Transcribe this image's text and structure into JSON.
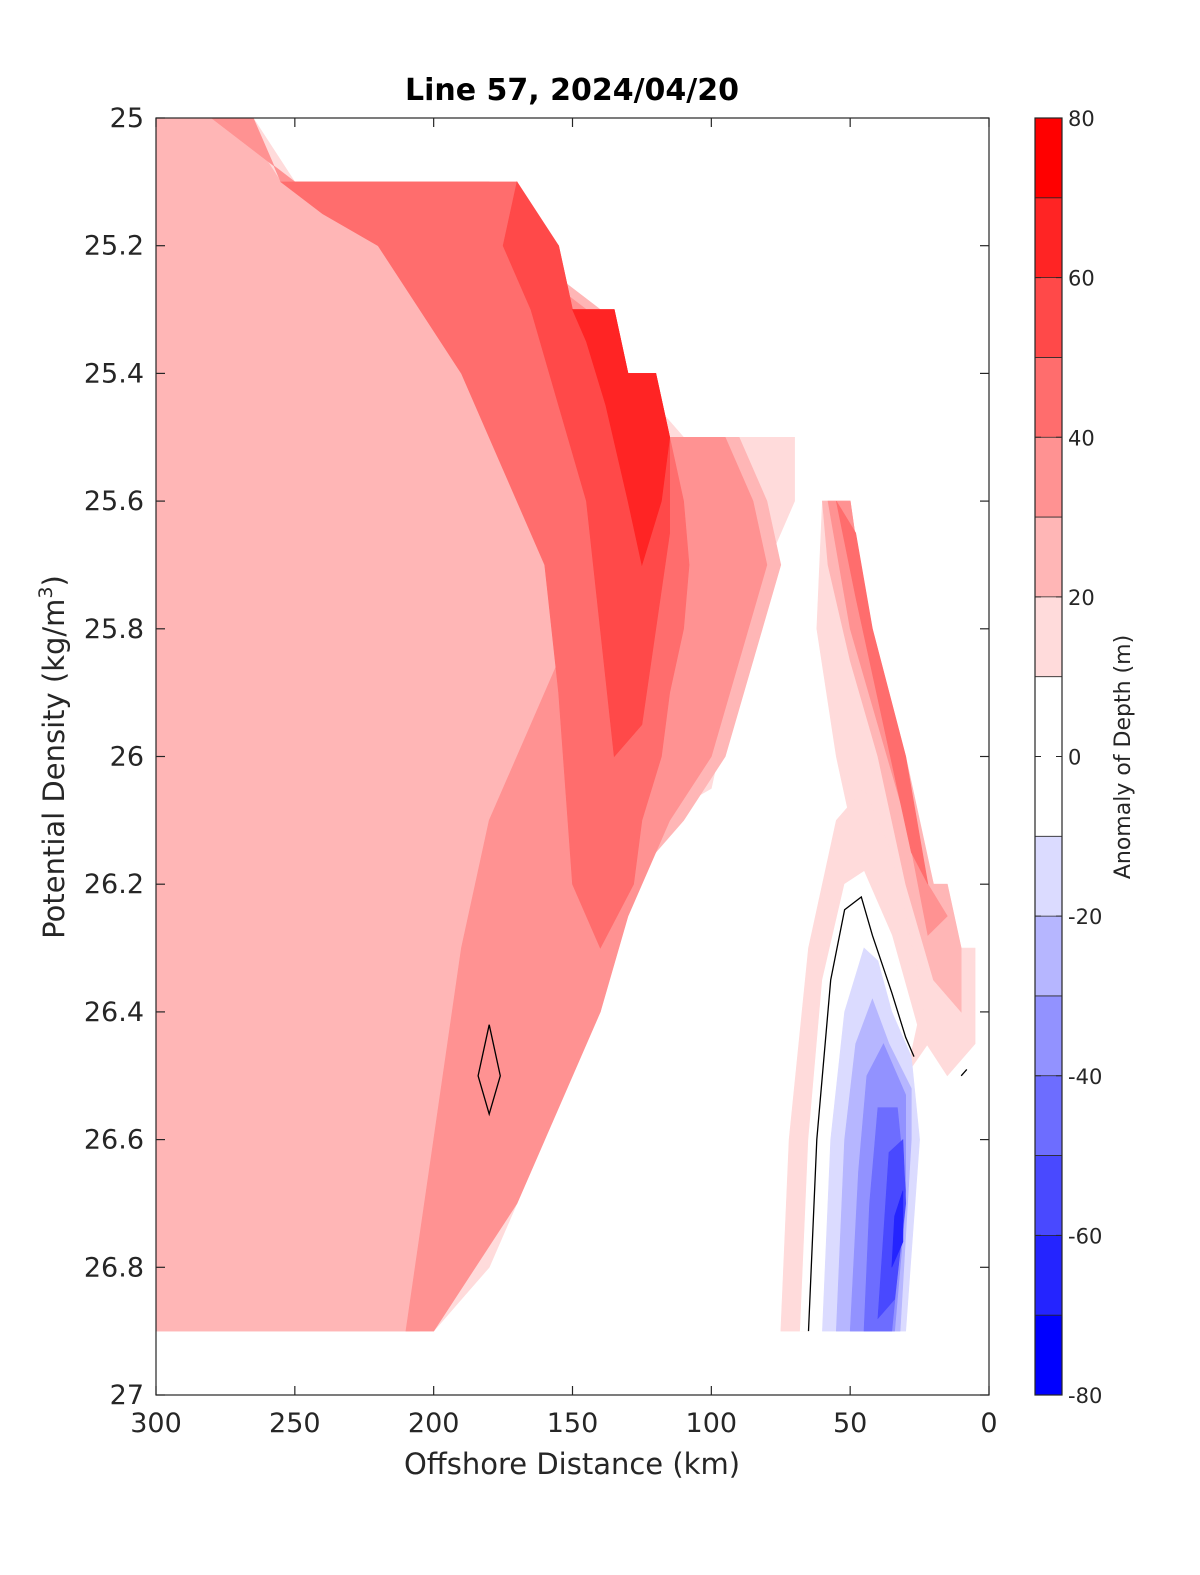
{
  "chart_data": {
    "type": "contourf",
    "title": "Line 57, 2024/04/20",
    "xlabel": "Offshore Distance (km)",
    "ylabel_main": "Potential Density (kg/m",
    "ylabel_sup": "3",
    "ylabel_close": ")",
    "colorbar_label": "Anomaly of Depth (m)",
    "xlim": [
      300,
      0
    ],
    "ylim": [
      25,
      27
    ],
    "x_reversed": true,
    "y_reversed": true,
    "x_ticks": [
      300,
      250,
      200,
      150,
      100,
      50,
      0
    ],
    "x_tick_labels": [
      "300",
      "250",
      "200",
      "150",
      "100",
      "50",
      "0"
    ],
    "y_ticks": [
      25,
      25.2,
      25.4,
      25.6,
      25.8,
      26,
      26.2,
      26.4,
      26.6,
      26.8,
      27
    ],
    "y_tick_labels": [
      "25",
      "25.2",
      "25.4",
      "25.6",
      "25.8",
      "26",
      "26.2",
      "26.4",
      "26.6",
      "26.8",
      "27"
    ],
    "colorbar": {
      "range": [
        -80,
        80
      ],
      "levels": [
        -80,
        -70,
        -60,
        -50,
        -40,
        -30,
        -20,
        -10,
        10,
        20,
        30,
        40,
        50,
        60,
        70,
        80
      ],
      "colors": [
        "#0000ff",
        "#2424ff",
        "#4949ff",
        "#6d6dff",
        "#9292ff",
        "#b6b6ff",
        "#dbdbff",
        "#ffffff",
        "#ffdbdb",
        "#ffb6b6",
        "#ff9292",
        "#ff6d6d",
        "#ff4949",
        "#ff2424",
        "#ff0000"
      ],
      "tick_values": [
        80,
        60,
        40,
        20,
        0,
        -20,
        -40,
        -60,
        -80
      ],
      "tick_labels": [
        "80",
        "60",
        "40",
        "20",
        "0",
        "-20",
        "-40",
        "-60",
        "-80"
      ]
    },
    "coverage_top_density": [
      [
        300,
        25.0
      ],
      [
        260,
        25.0
      ],
      [
        255,
        25.1
      ],
      [
        170,
        25.1
      ],
      [
        165,
        25.2
      ],
      [
        155,
        25.2
      ],
      [
        150,
        25.3
      ],
      [
        135,
        25.3
      ],
      [
        130,
        25.4
      ],
      [
        120,
        25.4
      ],
      [
        115,
        25.5
      ],
      [
        65,
        25.5
      ],
      [
        60,
        25.6
      ],
      [
        50,
        25.6
      ],
      [
        45,
        25.75
      ],
      [
        20,
        26.2
      ],
      [
        15,
        26.2
      ],
      [
        10,
        26.3
      ],
      [
        5,
        26.3
      ]
    ],
    "coverage_bottom_density": 26.9,
    "regions": [
      {
        "level": 15,
        "points": [
          [
            300,
            25.0
          ],
          [
            265,
            25.0
          ],
          [
            250,
            25.1
          ],
          [
            240,
            25.1
          ],
          [
            220,
            25.15
          ],
          [
            205,
            25.2
          ],
          [
            180,
            25.2
          ],
          [
            175,
            25.15
          ],
          [
            165,
            25.2
          ],
          [
            155,
            25.3
          ],
          [
            140,
            25.35
          ],
          [
            130,
            25.4
          ],
          [
            120,
            25.45
          ],
          [
            110,
            25.5
          ],
          [
            70,
            25.5
          ],
          [
            70,
            25.6
          ],
          [
            80,
            25.7
          ],
          [
            85,
            25.85
          ],
          [
            95,
            25.95
          ],
          [
            100,
            26.05
          ],
          [
            120,
            26.1
          ],
          [
            140,
            26.2
          ],
          [
            145,
            26.4
          ],
          [
            160,
            26.6
          ],
          [
            170,
            26.7
          ],
          [
            180,
            26.8
          ],
          [
            190,
            26.85
          ],
          [
            200,
            26.9
          ],
          [
            300,
            26.9
          ]
        ]
      },
      {
        "level": 25,
        "points": [
          [
            300,
            25.0
          ],
          [
            270,
            25.0
          ],
          [
            255,
            25.1
          ],
          [
            180,
            25.1
          ],
          [
            175,
            25.15
          ],
          [
            155,
            25.25
          ],
          [
            140,
            25.3
          ],
          [
            130,
            25.4
          ],
          [
            120,
            25.5
          ],
          [
            90,
            25.5
          ],
          [
            80,
            25.6
          ],
          [
            75,
            25.7
          ],
          [
            85,
            25.85
          ],
          [
            95,
            26.0
          ],
          [
            110,
            26.1
          ],
          [
            130,
            26.2
          ],
          [
            140,
            26.4
          ],
          [
            160,
            26.5
          ],
          [
            170,
            26.65
          ],
          [
            185,
            26.75
          ],
          [
            200,
            26.85
          ],
          [
            205,
            26.9
          ],
          [
            300,
            26.9
          ]
        ]
      },
      {
        "level": 35,
        "points": [
          [
            280,
            25.0
          ],
          [
            265,
            25.0
          ],
          [
            255,
            25.1
          ],
          [
            180,
            25.1
          ],
          [
            175,
            25.15
          ],
          [
            160,
            25.25
          ],
          [
            145,
            25.3
          ],
          [
            130,
            25.4
          ],
          [
            120,
            25.5
          ],
          [
            95,
            25.5
          ],
          [
            85,
            25.6
          ],
          [
            80,
            25.7
          ],
          [
            90,
            25.85
          ],
          [
            100,
            26.0
          ],
          [
            115,
            26.1
          ],
          [
            130,
            26.25
          ],
          [
            140,
            26.4
          ],
          [
            155,
            26.55
          ],
          [
            170,
            26.7
          ],
          [
            185,
            26.8
          ],
          [
            200,
            26.9
          ],
          [
            210,
            26.9
          ],
          [
            200,
            26.6
          ],
          [
            190,
            26.3
          ],
          [
            180,
            26.1
          ],
          [
            165,
            25.95
          ],
          [
            150,
            25.8
          ],
          [
            130,
            25.65
          ],
          [
            115,
            25.55
          ]
        ]
      },
      {
        "level": 45,
        "points": [
          [
            255,
            25.1
          ],
          [
            170,
            25.1
          ],
          [
            165,
            25.2
          ],
          [
            155,
            25.2
          ],
          [
            150,
            25.3
          ],
          [
            135,
            25.3
          ],
          [
            130,
            25.4
          ],
          [
            120,
            25.4
          ],
          [
            115,
            25.5
          ],
          [
            110,
            25.6
          ],
          [
            108,
            25.7
          ],
          [
            110,
            25.8
          ],
          [
            115,
            25.9
          ],
          [
            118,
            26.0
          ],
          [
            125,
            26.1
          ],
          [
            128,
            26.2
          ],
          [
            140,
            26.3
          ],
          [
            150,
            26.2
          ],
          [
            155,
            25.9
          ],
          [
            160,
            25.7
          ],
          [
            175,
            25.55
          ],
          [
            190,
            25.4
          ],
          [
            205,
            25.3
          ],
          [
            220,
            25.2
          ],
          [
            240,
            25.15
          ]
        ]
      },
      {
        "level": 55,
        "points": [
          [
            170,
            25.1
          ],
          [
            155,
            25.2
          ],
          [
            150,
            25.3
          ],
          [
            135,
            25.3
          ],
          [
            130,
            25.4
          ],
          [
            120,
            25.4
          ],
          [
            115,
            25.5
          ],
          [
            115,
            25.65
          ],
          [
            120,
            25.8
          ],
          [
            125,
            25.95
          ],
          [
            135,
            26.0
          ],
          [
            140,
            25.8
          ],
          [
            145,
            25.6
          ],
          [
            155,
            25.45
          ],
          [
            165,
            25.3
          ],
          [
            175,
            25.2
          ]
        ]
      },
      {
        "level": 65,
        "points": [
          [
            150,
            25.3
          ],
          [
            135,
            25.3
          ],
          [
            130,
            25.4
          ],
          [
            120,
            25.4
          ],
          [
            115,
            25.5
          ],
          [
            118,
            25.6
          ],
          [
            125,
            25.7
          ],
          [
            130,
            25.6
          ],
          [
            138,
            25.45
          ],
          [
            145,
            25.35
          ]
        ]
      },
      {
        "level": 15,
        "points": [
          [
            60,
            25.6
          ],
          [
            50,
            25.6
          ],
          [
            45,
            25.75
          ],
          [
            20,
            26.2
          ],
          [
            15,
            26.2
          ],
          [
            10,
            26.3
          ],
          [
            5,
            26.3
          ],
          [
            5,
            26.45
          ],
          [
            15,
            26.5
          ],
          [
            30,
            26.4
          ],
          [
            45,
            26.2
          ],
          [
            55,
            26.0
          ],
          [
            62,
            25.8
          ]
        ]
      },
      {
        "level": 25,
        "points": [
          [
            60,
            25.6
          ],
          [
            50,
            25.6
          ],
          [
            45,
            25.75
          ],
          [
            30,
            26.0
          ],
          [
            20,
            26.2
          ],
          [
            15,
            26.2
          ],
          [
            10,
            26.3
          ],
          [
            10,
            26.4
          ],
          [
            20,
            26.35
          ],
          [
            30,
            26.2
          ],
          [
            40,
            26.0
          ],
          [
            50,
            25.85
          ],
          [
            58,
            25.7
          ]
        ]
      },
      {
        "level": 35,
        "points": [
          [
            58,
            25.6
          ],
          [
            50,
            25.6
          ],
          [
            45,
            25.75
          ],
          [
            32,
            26.0
          ],
          [
            22,
            26.2
          ],
          [
            15,
            26.25
          ],
          [
            22,
            26.28
          ],
          [
            30,
            26.1
          ],
          [
            40,
            25.95
          ],
          [
            50,
            25.8
          ]
        ]
      },
      {
        "level": 45,
        "points": [
          [
            55,
            25.6
          ],
          [
            48,
            25.65
          ],
          [
            42,
            25.8
          ],
          [
            30,
            26.0
          ],
          [
            22,
            26.2
          ],
          [
            28,
            26.15
          ],
          [
            38,
            25.95
          ],
          [
            48,
            25.75
          ]
        ]
      },
      {
        "level": 15,
        "points": [
          [
            75,
            26.9
          ],
          [
            72,
            26.6
          ],
          [
            65,
            26.3
          ],
          [
            55,
            26.1
          ],
          [
            45,
            26.05
          ],
          [
            35,
            26.15
          ],
          [
            25,
            26.35
          ],
          [
            22,
            26.45
          ],
          [
            30,
            26.5
          ],
          [
            35,
            26.3
          ],
          [
            45,
            26.2
          ],
          [
            55,
            26.3
          ],
          [
            60,
            26.6
          ],
          [
            65,
            26.9
          ]
        ]
      },
      {
        "level": 5,
        "points": [
          [
            68,
            26.9
          ],
          [
            65,
            26.6
          ],
          [
            60,
            26.35
          ],
          [
            52,
            26.2
          ],
          [
            45,
            26.18
          ],
          [
            35,
            26.28
          ],
          [
            26,
            26.42
          ],
          [
            30,
            26.5
          ],
          [
            45,
            26.35
          ],
          [
            55,
            26.4
          ],
          [
            60,
            26.9
          ]
        ]
      },
      {
        "level": -15,
        "points": [
          [
            60,
            26.9
          ],
          [
            57,
            26.6
          ],
          [
            52,
            26.4
          ],
          [
            45,
            26.3
          ],
          [
            40,
            26.32
          ],
          [
            35,
            26.4
          ],
          [
            28,
            26.47
          ],
          [
            25,
            26.6
          ],
          [
            30,
            26.9
          ]
        ]
      },
      {
        "level": -25,
        "points": [
          [
            55,
            26.9
          ],
          [
            52,
            26.6
          ],
          [
            48,
            26.45
          ],
          [
            42,
            26.38
          ],
          [
            36,
            26.45
          ],
          [
            28,
            26.52
          ],
          [
            28,
            26.6
          ],
          [
            32,
            26.9
          ]
        ]
      },
      {
        "level": -35,
        "points": [
          [
            50,
            26.9
          ],
          [
            47,
            26.65
          ],
          [
            44,
            26.5
          ],
          [
            38,
            26.45
          ],
          [
            30,
            26.53
          ],
          [
            30,
            26.7
          ],
          [
            34,
            26.9
          ]
        ]
      },
      {
        "level": -45,
        "points": [
          [
            45,
            26.9
          ],
          [
            43,
            26.7
          ],
          [
            40,
            26.55
          ],
          [
            33,
            26.55
          ],
          [
            30,
            26.68
          ],
          [
            35,
            26.9
          ]
        ]
      },
      {
        "level": -55,
        "points": [
          [
            40,
            26.88
          ],
          [
            38,
            26.75
          ],
          [
            36,
            26.62
          ],
          [
            31,
            26.6
          ],
          [
            30,
            26.7
          ],
          [
            34,
            26.85
          ]
        ]
      },
      {
        "level": -65,
        "points": [
          [
            35,
            26.8
          ],
          [
            34,
            26.72
          ],
          [
            31,
            26.68
          ],
          [
            31,
            26.76
          ]
        ]
      }
    ],
    "zero_contours": [
      [
        [
          65,
          26.9
        ],
        [
          62,
          26.6
        ],
        [
          57,
          26.35
        ],
        [
          52,
          26.24
        ],
        [
          46,
          26.22
        ],
        [
          42,
          26.28
        ],
        [
          35,
          26.37
        ],
        [
          30,
          26.44
        ],
        [
          27,
          26.47
        ]
      ],
      [
        [
          180,
          26.42
        ],
        [
          184,
          26.5
        ],
        [
          180,
          26.56
        ],
        [
          176,
          26.5
        ],
        [
          180,
          26.42
        ]
      ],
      [
        [
          8,
          26.49
        ],
        [
          10,
          26.5
        ]
      ]
    ]
  }
}
